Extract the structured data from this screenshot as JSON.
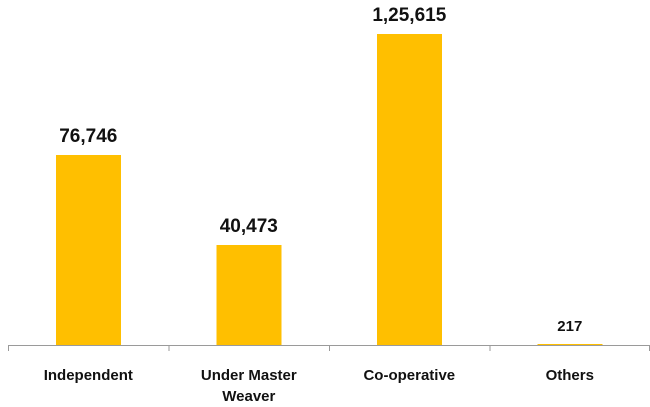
{
  "chart_data": {
    "type": "bar",
    "title": "",
    "xlabel": "",
    "ylabel": "",
    "categories": [
      [
        "Independent"
      ],
      [
        "Under Master",
        "Weaver"
      ],
      [
        "Co-operative"
      ],
      [
        "Others"
      ]
    ],
    "values": [
      76746,
      40473,
      125615,
      217
    ],
    "data_labels": [
      "76,746",
      "40,473",
      "1,25,615",
      "217"
    ],
    "ylim": [
      0,
      125615
    ],
    "grid": false,
    "legend": "none",
    "colors": {
      "bar": "#ffbf00",
      "axis": "#9a9a9a",
      "text": "#111111",
      "background": "#ffffff"
    }
  }
}
